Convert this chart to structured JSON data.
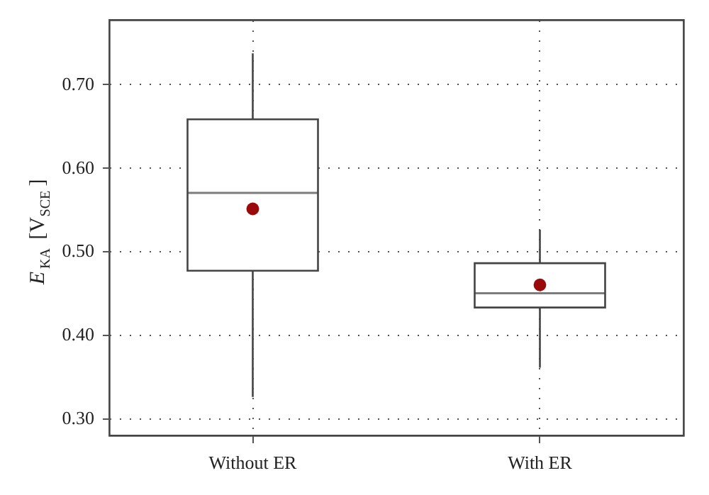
{
  "chart_data": {
    "type": "box",
    "ylabel": "E$_{KA}$ [V$_{SCE}$]",
    "categories": [
      "Without ER",
      "With ER"
    ],
    "boxes": [
      {
        "low": 0.325,
        "q1": 0.476,
        "median": 0.569,
        "q3": 0.657,
        "high": 0.736
      },
      {
        "low": 0.36,
        "q1": 0.432,
        "median": 0.449,
        "q3": 0.485,
        "high": 0.525
      }
    ],
    "color": "#444444",
    "series": [
      {
        "type": "scatter",
        "x": [
          "Without ER",
          "With ER"
        ],
        "values": [
          0.55,
          0.459
        ],
        "color": "#9b0a0a"
      }
    ],
    "ylim": [
      0.279,
      0.776
    ],
    "yticks": [
      {
        "value": 0.3,
        "label": "0.30"
      },
      {
        "value": 0.4,
        "label": "0.40"
      },
      {
        "value": 0.5,
        "label": "0.50"
      },
      {
        "value": 0.6,
        "label": "0.60"
      },
      {
        "value": 0.7,
        "label": "0.70"
      }
    ],
    "grid": true
  }
}
